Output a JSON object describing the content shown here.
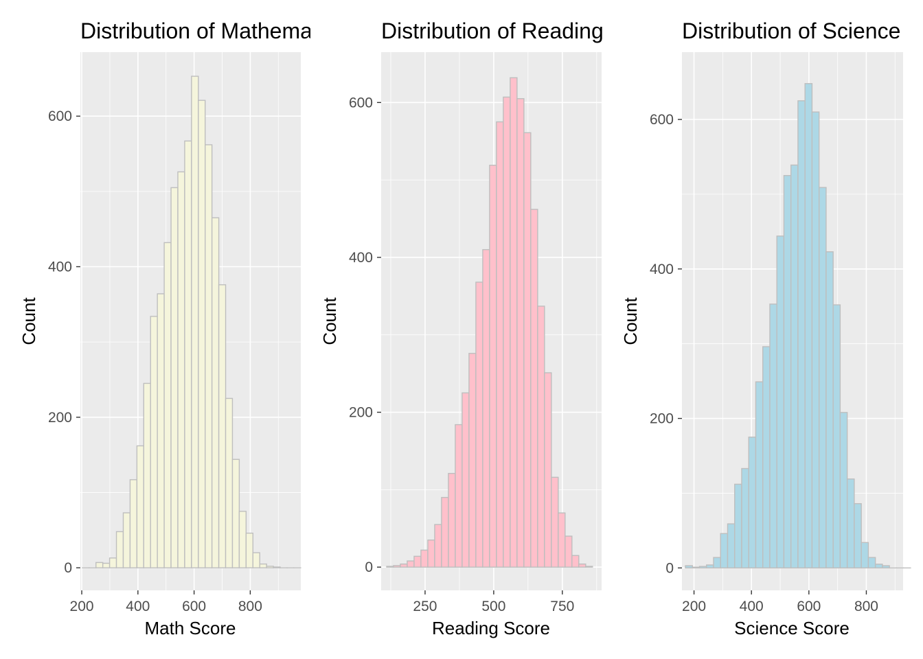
{
  "chart_data": [
    {
      "type": "bar",
      "histogram": true,
      "title": "Distribution of Mathematics",
      "xlabel": "Math Score",
      "ylabel": "Count",
      "fill": "#F5F5DC",
      "outline": "#BEBEBE",
      "xlim": [
        195,
        980
      ],
      "ylim": [
        -30,
        685
      ],
      "x_ticks": [
        200,
        400,
        600,
        800
      ],
      "y_ticks": [
        0,
        200,
        400,
        600
      ],
      "bin_width": 24.3,
      "bins_start": 202,
      "values": [
        0,
        0,
        7,
        6,
        13,
        48,
        73,
        117,
        162,
        245,
        334,
        364,
        432,
        505,
        526,
        567,
        653,
        621,
        562,
        465,
        376,
        225,
        144,
        75,
        46,
        20,
        5,
        2,
        1,
        0,
        0,
        0
      ]
    },
    {
      "type": "bar",
      "histogram": true,
      "title": "Distribution of Reading",
      "xlabel": "Reading Score",
      "ylabel": "Count",
      "fill": "#FFC0CB",
      "outline": "#BEBEBE",
      "xlim": [
        90,
        893
      ],
      "ylim": [
        -30,
        665
      ],
      "x_ticks": [
        250,
        500,
        750
      ],
      "y_ticks": [
        0,
        200,
        400,
        600
      ],
      "bin_width": 25.0,
      "bins_start": 110,
      "values": [
        1,
        2,
        4,
        8,
        14,
        22,
        35,
        55,
        90,
        121,
        184,
        225,
        276,
        368,
        410,
        519,
        575,
        607,
        632,
        605,
        561,
        462,
        337,
        251,
        116,
        70,
        40,
        15,
        4,
        1
      ]
    },
    {
      "type": "bar",
      "histogram": true,
      "title": "Distribution of Science",
      "xlabel": "Science Score",
      "ylabel": "Count",
      "fill": "#ADD8E6",
      "outline": "#BEBEBE",
      "xlim": [
        158,
        928
      ],
      "ylim": [
        -30,
        690
      ],
      "x_ticks": [
        200,
        400,
        600,
        800
      ],
      "y_ticks": [
        0,
        200,
        400,
        600
      ],
      "bin_width": 24.5,
      "bins_start": 170,
      "values": [
        3,
        1,
        2,
        4,
        14,
        46,
        59,
        112,
        133,
        175,
        249,
        296,
        353,
        444,
        525,
        539,
        625,
        648,
        610,
        509,
        423,
        352,
        208,
        119,
        86,
        34,
        14,
        5,
        3,
        0,
        0,
        0
      ]
    }
  ]
}
